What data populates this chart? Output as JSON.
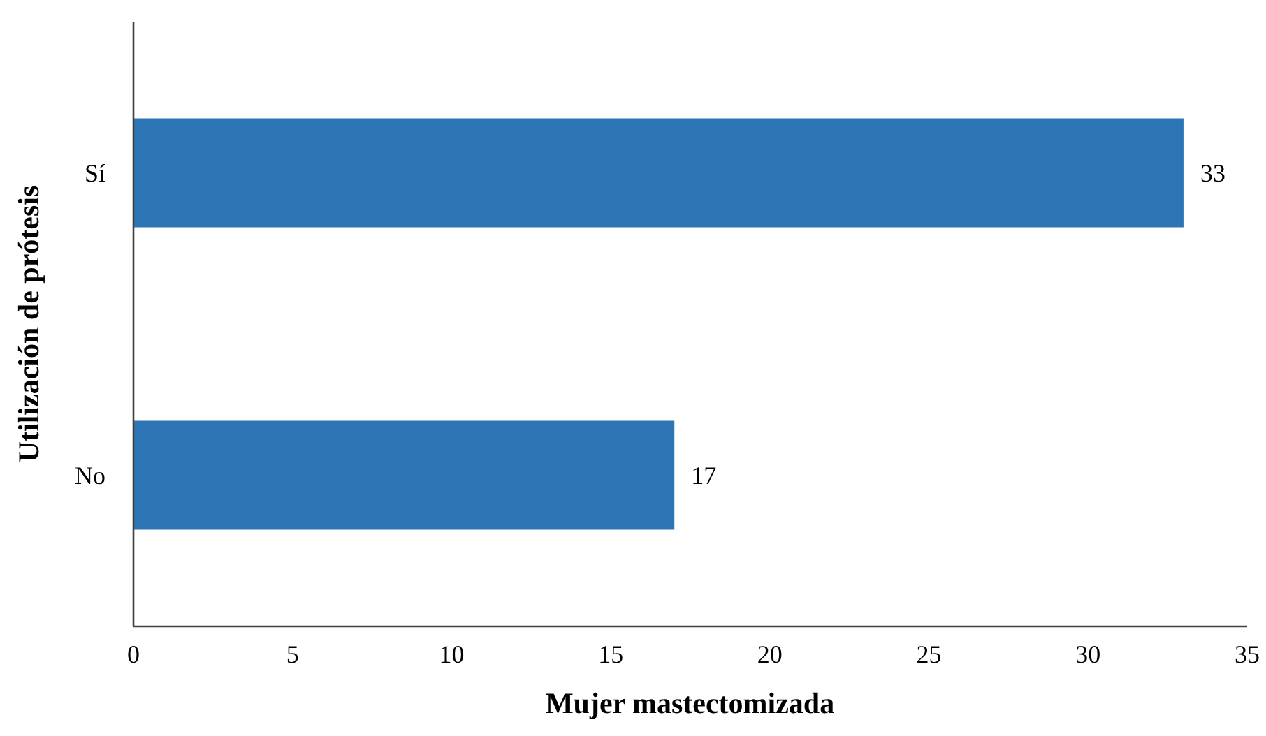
{
  "chart_data": {
    "type": "bar",
    "orientation": "horizontal",
    "xlabel": "Mujer mastectomizada",
    "ylabel": "Utilización de prótesis",
    "categories": [
      "Sí",
      "No"
    ],
    "values": [
      33,
      17
    ],
    "color": "#2e75b6",
    "xlim": [
      0,
      35
    ],
    "xticks": [
      0,
      5,
      10,
      15,
      20,
      25,
      30,
      35
    ],
    "data_labels": true
  }
}
